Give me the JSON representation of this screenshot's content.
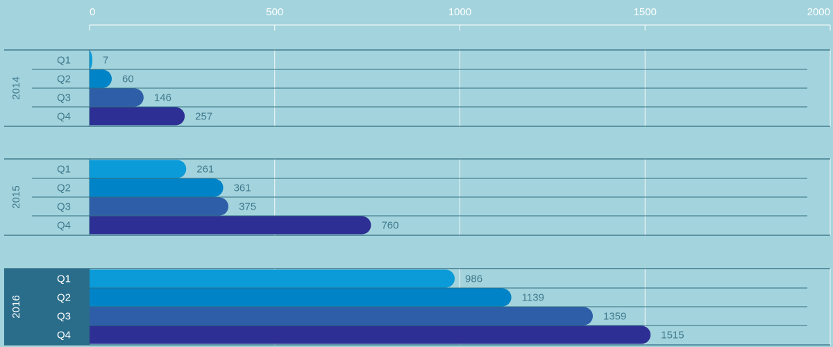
{
  "chart_data": {
    "type": "bar",
    "orientation": "horizontal",
    "title": "",
    "xlabel": "",
    "ylabel": "",
    "xlim": [
      0,
      2000
    ],
    "x_ticks": [
      "0",
      "500",
      "1000",
      "1500",
      "2000"
    ],
    "grid": true,
    "legend": "none",
    "groups": [
      {
        "label": "2014",
        "highlighted": false,
        "bars": [
          {
            "label": "Q1",
            "value": 7
          },
          {
            "label": "Q2",
            "value": 60
          },
          {
            "label": "Q3",
            "value": 146
          },
          {
            "label": "Q4",
            "value": 257
          }
        ]
      },
      {
        "label": "2015",
        "highlighted": false,
        "bars": [
          {
            "label": "Q1",
            "value": 261
          },
          {
            "label": "Q2",
            "value": 361
          },
          {
            "label": "Q3",
            "value": 375
          },
          {
            "label": "Q4",
            "value": 760
          }
        ]
      },
      {
        "label": "2016",
        "highlighted": true,
        "bars": [
          {
            "label": "Q1",
            "value": 986
          },
          {
            "label": "Q2",
            "value": 1139
          },
          {
            "label": "Q3",
            "value": 1359
          },
          {
            "label": "Q4",
            "value": 1515
          }
        ]
      }
    ]
  },
  "colors": {
    "background": "#a3d3dc",
    "text": "#3f7a8e",
    "highlight_panel": "#2a6d8a",
    "highlight_text": "#ffffff",
    "gridline": "#ffffff",
    "separator": "#2f6c80",
    "quarter_colors": [
      "#0a9bd8",
      "#0083c7",
      "#2e5ea8",
      "#2d2f94"
    ]
  }
}
